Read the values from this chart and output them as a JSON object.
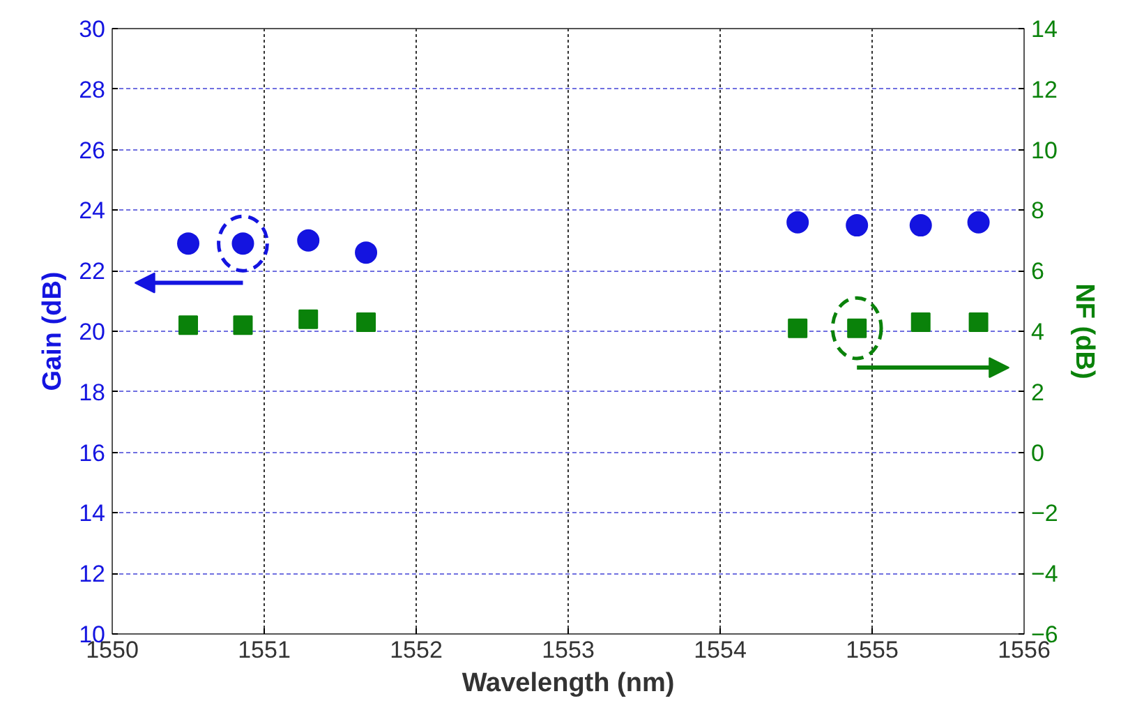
{
  "chart_data": {
    "type": "scatter",
    "xlabel": "Wavelength (nm)",
    "ylabel": "Gain (dB)",
    "y2label": "NF (dB)",
    "x": [
      1550.5,
      1550.86,
      1551.29,
      1551.67,
      1554.51,
      1554.9,
      1555.32,
      1555.7
    ],
    "series": [
      {
        "color": "#1414e0",
        "marker": "circle",
        "values": [
          22.9,
          22.9,
          23.0,
          22.6,
          23.6,
          23.5,
          23.5,
          23.6
        ]
      },
      {
        "color": "#0a820a",
        "marker": "square",
        "axis": "y2",
        "values": [
          4.2,
          4.2,
          4.4,
          4.3,
          4.1,
          4.1,
          4.3,
          4.3
        ]
      }
    ],
    "xlim": [
      1550,
      1556
    ],
    "xticks": [
      1550,
      1551,
      1552,
      1553,
      1554,
      1555,
      1556
    ],
    "ylim": [
      10,
      30
    ],
    "yticks": [
      10,
      12,
      14,
      16,
      18,
      20,
      22,
      24,
      26,
      28,
      30
    ],
    "y2lim": [
      -6,
      14
    ],
    "y2ticks": [
      -6,
      -4,
      -2,
      0,
      2,
      4,
      6,
      8,
      10,
      12,
      14
    ],
    "grid": true
  }
}
